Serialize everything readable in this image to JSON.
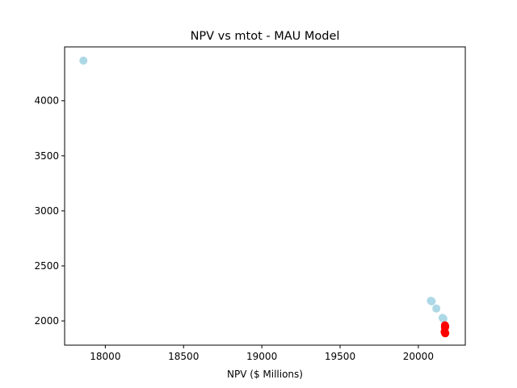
{
  "chart_data": {
    "type": "scatter",
    "title": "NPV vs mtot - MAU Model",
    "xlabel": "NPV ($ Millions)",
    "ylabel": "",
    "xlim": [
      17740,
      20300
    ],
    "ylim": [
      1780,
      4490
    ],
    "x_ticks": [
      18000,
      18500,
      19000,
      19500,
      20000
    ],
    "y_ticks": [
      2000,
      2500,
      3000,
      3500,
      4000
    ],
    "grid": false,
    "legend": "none",
    "series": [
      {
        "color": "#add8e6",
        "points": [
          {
            "x": 17860,
            "y": 4365
          },
          {
            "x": 20080,
            "y": 2183
          },
          {
            "x": 20085,
            "y": 2178
          },
          {
            "x": 20115,
            "y": 2113
          },
          {
            "x": 20155,
            "y": 2028
          },
          {
            "x": 20160,
            "y": 2020
          }
        ]
      },
      {
        "color": "#ff0000",
        "points": [
          {
            "x": 20170,
            "y": 1960
          },
          {
            "x": 20172,
            "y": 1950
          },
          {
            "x": 20170,
            "y": 1942
          },
          {
            "x": 20168,
            "y": 1902
          },
          {
            "x": 20170,
            "y": 1893
          },
          {
            "x": 20172,
            "y": 1888
          }
        ]
      }
    ]
  }
}
